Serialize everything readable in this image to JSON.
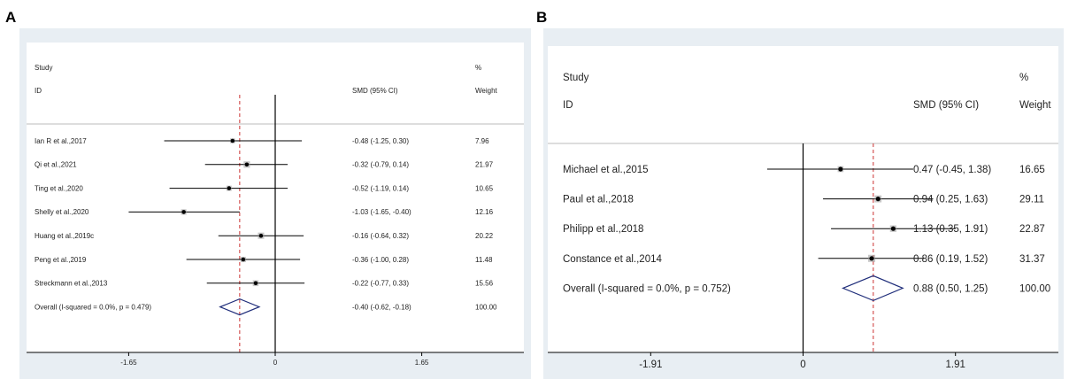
{
  "chart_data": [
    {
      "type": "forest",
      "panel_label": "A",
      "title": "",
      "header": {
        "study_line1": "Study",
        "study_line2": "ID",
        "effect_label": "SMD (95% CI)",
        "weight_line1": "%",
        "weight_line2": "Weight"
      },
      "studies": [
        {
          "id": "Ian R et al.,2017",
          "smd": -0.48,
          "lower": -1.25,
          "upper": 0.3,
          "ci_text": "-0.48 (-1.25, 0.30)",
          "weight": "7.96"
        },
        {
          "id": "Qi et al.,2021",
          "smd": -0.32,
          "lower": -0.79,
          "upper": 0.14,
          "ci_text": "-0.32 (-0.79, 0.14)",
          "weight": "21.97"
        },
        {
          "id": "Ting et al.,2020",
          "smd": -0.52,
          "lower": -1.19,
          "upper": 0.14,
          "ci_text": "-0.52 (-1.19, 0.14)",
          "weight": "10.65"
        },
        {
          "id": "Shelly et al.,2020",
          "smd": -1.03,
          "lower": -1.65,
          "upper": -0.4,
          "ci_text": "-1.03 (-1.65, -0.40)",
          "weight": "12.16"
        },
        {
          "id": "Huang et al.,2019c",
          "smd": -0.16,
          "lower": -0.64,
          "upper": 0.32,
          "ci_text": "-0.16 (-0.64, 0.32)",
          "weight": "20.22"
        },
        {
          "id": "Peng et al.,2019",
          "smd": -0.36,
          "lower": -1.0,
          "upper": 0.28,
          "ci_text": "-0.36 (-1.00, 0.28)",
          "weight": "11.48"
        },
        {
          "id": "Streckmann et al.,2013",
          "smd": -0.22,
          "lower": -0.77,
          "upper": 0.33,
          "ci_text": "-0.22 (-0.77, 0.33)",
          "weight": "15.56"
        }
      ],
      "overall": {
        "label": "Overall  (I-squared = 0.0%, p = 0.479)",
        "smd": -0.4,
        "lower": -0.62,
        "upper": -0.18,
        "ci_text": "-0.40 (-0.62, -0.18)",
        "weight": "100.00"
      },
      "x_ticks": [
        -1.65,
        0,
        1.65
      ],
      "x_tick_labels": [
        "-1.65",
        "0",
        "1.65"
      ],
      "xlim": [
        -2.8,
        2.8
      ]
    },
    {
      "type": "forest",
      "panel_label": "B",
      "title": "",
      "header": {
        "study_line1": "Study",
        "study_line2": "ID",
        "effect_label": "SMD (95% CI)",
        "weight_line1": "%",
        "weight_line2": "Weight"
      },
      "studies": [
        {
          "id": "Michael et al.,2015",
          "smd": 0.47,
          "lower": -0.45,
          "upper": 1.38,
          "ci_text": "0.47 (-0.45, 1.38)",
          "weight": "16.65"
        },
        {
          "id": "Paul et al.,2018",
          "smd": 0.94,
          "lower": 0.25,
          "upper": 1.63,
          "ci_text": "0.94 (0.25, 1.63)",
          "weight": "29.11"
        },
        {
          "id": "Philipp et al.,2018",
          "smd": 1.13,
          "lower": 0.35,
          "upper": 1.91,
          "ci_text": "1.13 (0.35, 1.91)",
          "weight": "22.87"
        },
        {
          "id": "Constance et al.,2014",
          "smd": 0.86,
          "lower": 0.19,
          "upper": 1.52,
          "ci_text": "0.86 (0.19, 1.52)",
          "weight": "31.37"
        }
      ],
      "overall": {
        "label": "Overall  (I-squared = 0.0%, p = 0.752)",
        "smd": 0.88,
        "lower": 0.5,
        "upper": 1.25,
        "ci_text": "0.88 (0.50, 1.25)",
        "weight": "100.00"
      },
      "x_ticks": [
        -1.91,
        0,
        1.91
      ],
      "x_tick_labels": [
        "-1.91",
        "0",
        "1.91"
      ],
      "xlim": [
        -3.2,
        3.2
      ]
    }
  ],
  "colors": {
    "outer_bg": "#e8eef3",
    "plot_bg": "#ffffff",
    "line": "#000000",
    "null_line": "#000000",
    "overall_line": "#cc3333",
    "diamond": "#1f2d7a",
    "marker_box": "#9a9a9a"
  }
}
